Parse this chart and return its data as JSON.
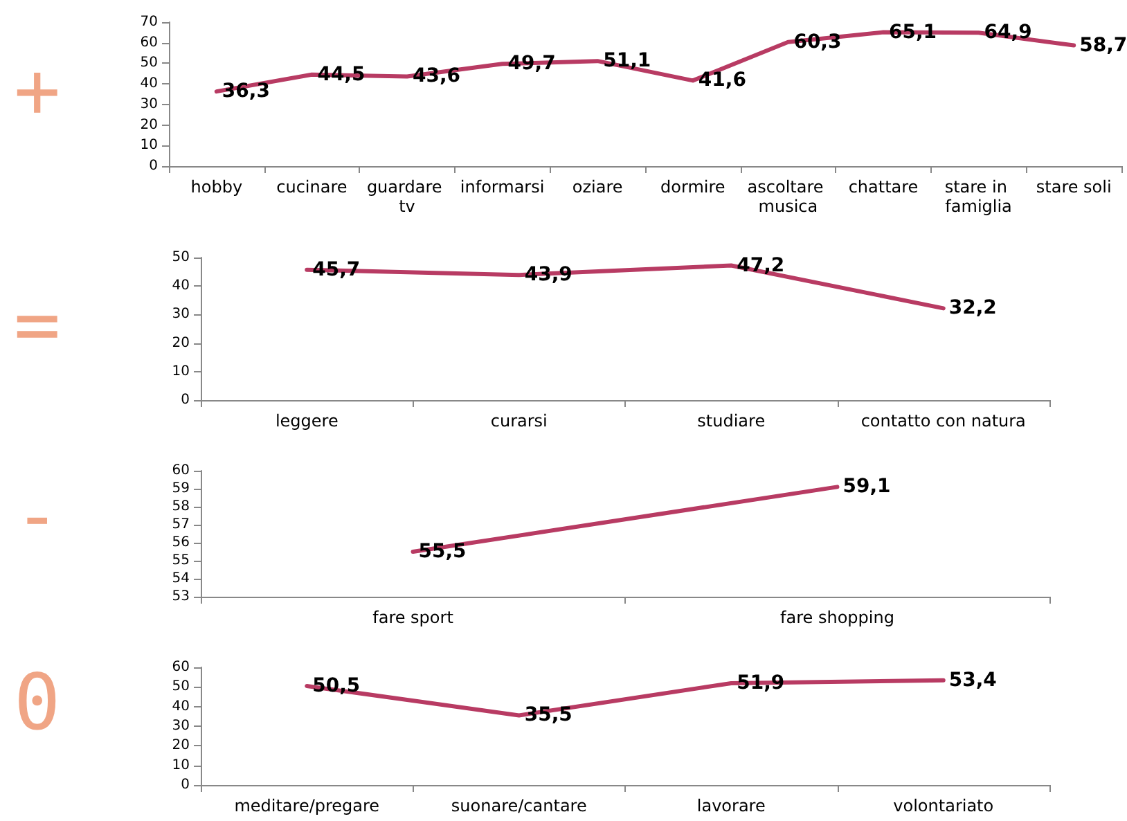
{
  "chart_data": [
    {
      "type": "line",
      "annotations": [
        "+"
      ],
      "categories": [
        "hobby",
        "cucinare",
        "guardare tv",
        "informarsi",
        "oziare",
        "dormire",
        "ascoltare musica",
        "chattare",
        "stare in famiglia",
        "stare soli"
      ],
      "values": [
        36.3,
        44.5,
        43.6,
        49.7,
        51.1,
        41.6,
        60.3,
        65.1,
        64.9,
        58.7
      ],
      "value_labels": [
        "36,3",
        "44,5",
        "43,6",
        "49,7",
        "51,1",
        "41,6",
        "60,3",
        "65,1",
        "64,9",
        "58,7"
      ],
      "color": "#b83b63",
      "ylim": [
        0,
        70
      ],
      "yticks": [
        0,
        10,
        20,
        30,
        40,
        50,
        60,
        70
      ],
      "grid": false,
      "marker": "none",
      "line_style": "solid"
    },
    {
      "type": "line",
      "annotations": [
        "="
      ],
      "categories": [
        "leggere",
        "curarsi",
        "studiare",
        "contatto con natura"
      ],
      "values": [
        45.7,
        43.9,
        47.2,
        32.2
      ],
      "value_labels": [
        "45,7",
        "43,9",
        "47,2",
        "32,2"
      ],
      "color": "#b83b63",
      "ylim": [
        0,
        50
      ],
      "yticks": [
        0,
        10,
        20,
        30,
        40,
        50
      ],
      "grid": false,
      "marker": "none",
      "line_style": "solid"
    },
    {
      "type": "line",
      "annotations": [
        "-"
      ],
      "categories": [
        "fare sport",
        "fare shopping"
      ],
      "values": [
        55.5,
        59.1
      ],
      "value_labels": [
        "55,5",
        "59,1"
      ],
      "color": "#b83b63",
      "ylim": [
        53,
        60
      ],
      "yticks": [
        53,
        54,
        55,
        56,
        57,
        58,
        59,
        60
      ],
      "grid": false,
      "marker": "none",
      "line_style": "solid"
    },
    {
      "type": "line",
      "annotations": [
        "0"
      ],
      "categories": [
        "meditare/pregare",
        "suonare/cantare",
        "lavorare",
        "volontariato"
      ],
      "values": [
        50.5,
        35.5,
        51.9,
        53.4
      ],
      "value_labels": [
        "50,5",
        "35,5",
        "51,9",
        "53,4"
      ],
      "color": "#b83b63",
      "ylim": [
        0,
        60
      ],
      "yticks": [
        0,
        10,
        20,
        30,
        40,
        50,
        60
      ],
      "grid": false,
      "marker": "none",
      "line_style": "solid"
    }
  ]
}
